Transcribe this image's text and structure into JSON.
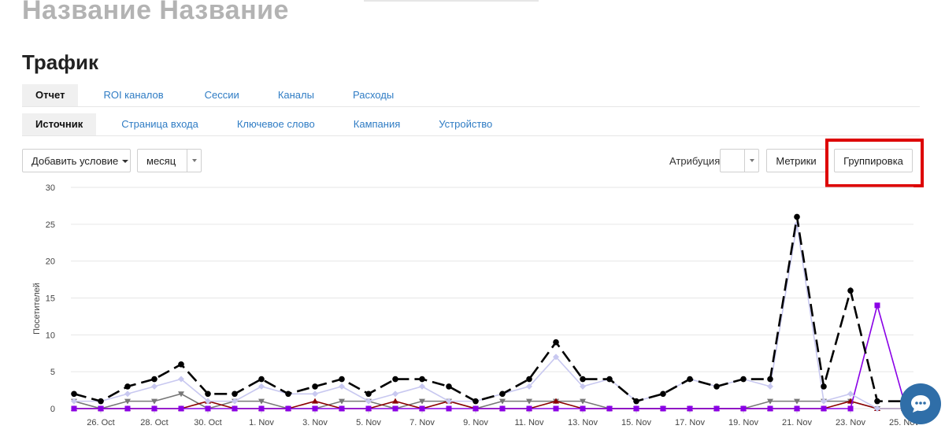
{
  "page": {
    "title": "Название Название"
  },
  "section": {
    "title": "Трафик"
  },
  "tabs_main": [
    {
      "label": "Отчет",
      "active": true
    },
    {
      "label": "ROI каналов"
    },
    {
      "label": "Сессии"
    },
    {
      "label": "Каналы"
    },
    {
      "label": "Расходы"
    }
  ],
  "tabs_sub": [
    {
      "label": "Источник",
      "active": true
    },
    {
      "label": "Страница входа"
    },
    {
      "label": "Ключевое слово"
    },
    {
      "label": "Кампания"
    },
    {
      "label": "Устройство"
    }
  ],
  "controls": {
    "add_condition": "Добавить условие",
    "period": "месяц",
    "attribution_label": "Атрибуция",
    "attribution_value": "",
    "metrics_button": "Метрики",
    "grouping_button": "Группировка"
  },
  "colors": {
    "link": "#2f7cc4",
    "highlight": "#dd0000",
    "chat_button": "#2f6ea8"
  },
  "icons": {
    "chat": "chat-bubble-icon"
  },
  "chart_data": {
    "type": "line",
    "ylabel": "Посетителей",
    "ylim": [
      0,
      30
    ],
    "yticks": [
      0,
      5,
      10,
      15,
      20,
      25,
      30
    ],
    "x_ticks": [
      "26. Oct",
      "28. Oct",
      "30. Oct",
      "1. Nov",
      "3. Nov",
      "5. Nov",
      "7. Nov",
      "9. Nov",
      "11. Nov",
      "13. Nov",
      "15. Nov",
      "17. Nov",
      "19. Nov",
      "21. Nov",
      "23. Nov",
      "25. Nov"
    ],
    "x": [
      "25. Oct",
      "26. Oct",
      "27. Oct",
      "28. Oct",
      "29. Oct",
      "30. Oct",
      "31. Oct",
      "1. Nov",
      "2. Nov",
      "3. Nov",
      "4. Nov",
      "5. Nov",
      "6. Nov",
      "7. Nov",
      "8. Nov",
      "9. Nov",
      "10. Nov",
      "11. Nov",
      "12. Nov",
      "13. Nov",
      "14. Nov",
      "15. Nov",
      "16. Nov",
      "17. Nov",
      "18. Nov",
      "19. Nov",
      "20. Nov",
      "21. Nov",
      "22. Nov",
      "23. Nov",
      "24. Nov",
      "25. Nov"
    ],
    "series": [
      {
        "color": "#000000",
        "style": "dashed",
        "marker": "circle",
        "values": [
          2,
          1,
          3,
          4,
          6,
          2,
          2,
          4,
          2,
          3,
          4,
          2,
          4,
          4,
          3,
          1,
          2,
          4,
          9,
          4,
          4,
          1,
          2,
          4,
          3,
          4,
          4,
          26,
          3,
          16,
          1,
          1
        ]
      },
      {
        "color": "#c8c8f0",
        "style": "solid",
        "marker": "diamond",
        "values": [
          1,
          1,
          2,
          3,
          4,
          1,
          1,
          3,
          2,
          2,
          3,
          1,
          2,
          3,
          1,
          1,
          2,
          3,
          7,
          3,
          4,
          1,
          2,
          4,
          3,
          4,
          3,
          25,
          1,
          2,
          0,
          0
        ]
      },
      {
        "color": "#777777",
        "style": "solid",
        "marker": "triangle-down",
        "values": [
          1,
          0,
          1,
          1,
          2,
          0,
          1,
          1,
          0,
          0,
          1,
          1,
          0,
          1,
          1,
          0,
          1,
          1,
          1,
          1,
          0,
          0,
          0,
          0,
          0,
          0,
          1,
          1,
          1,
          1,
          0,
          0
        ]
      },
      {
        "color": "#8b0000",
        "style": "solid",
        "marker": "triangle-up",
        "values": [
          0,
          0,
          0,
          0,
          0,
          1,
          0,
          0,
          0,
          1,
          0,
          0,
          1,
          0,
          1,
          0,
          0,
          0,
          1,
          0,
          0,
          0,
          0,
          0,
          0,
          0,
          0,
          0,
          0,
          1,
          0,
          0
        ]
      },
      {
        "color": "#8a00e6",
        "style": "solid",
        "marker": "square",
        "values": [
          0,
          0,
          0,
          0,
          0,
          0,
          0,
          0,
          0,
          0,
          0,
          0,
          0,
          0,
          0,
          0,
          0,
          0,
          0,
          0,
          0,
          0,
          0,
          0,
          0,
          0,
          0,
          0,
          0,
          0,
          14,
          1
        ]
      }
    ]
  }
}
